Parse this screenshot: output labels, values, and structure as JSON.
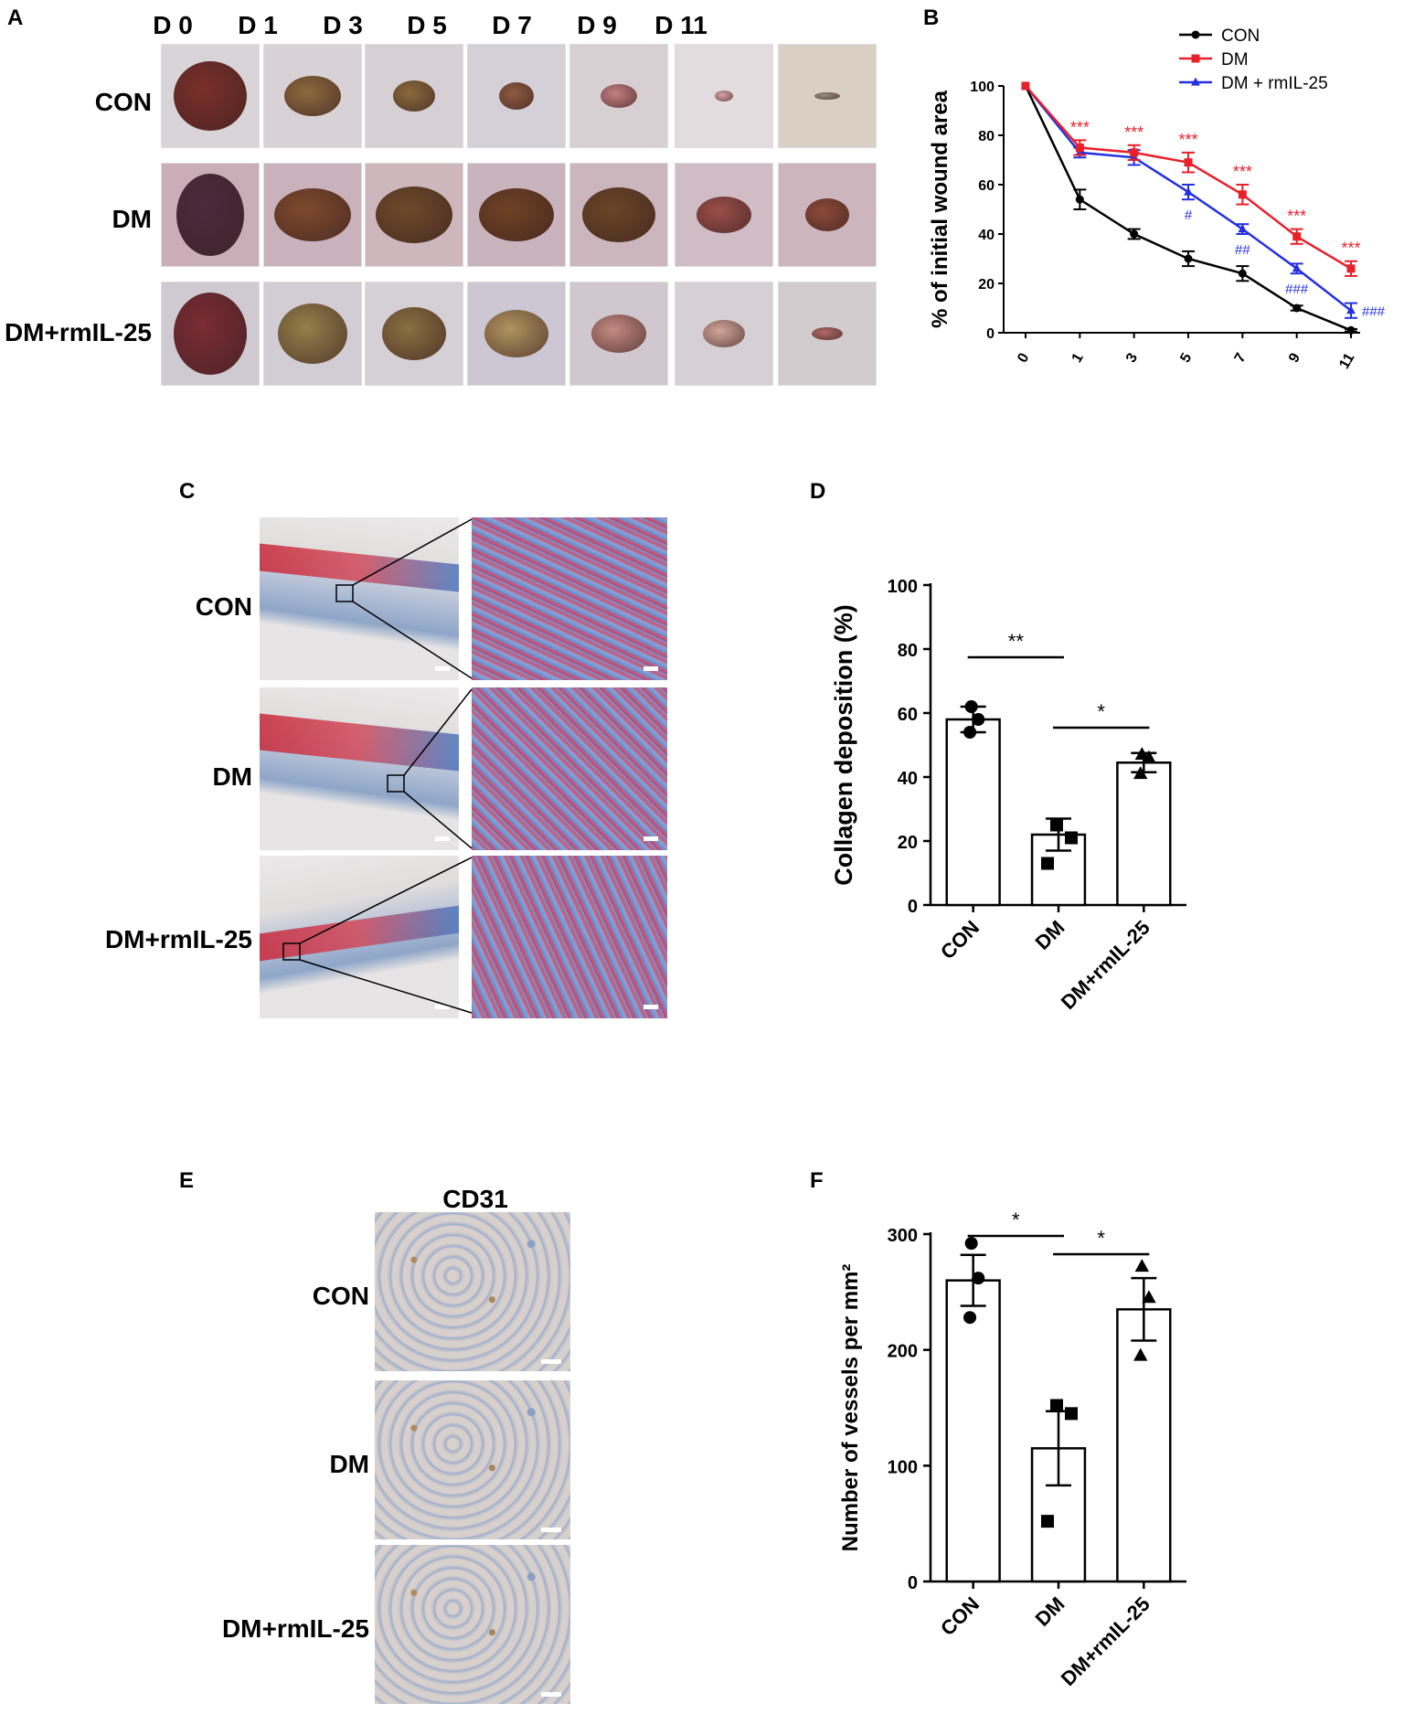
{
  "panels": {
    "A": {
      "label": "A",
      "days": [
        "D 0",
        "D 1",
        "D 3",
        "D 5",
        "D 7",
        "D 9",
        "D 11"
      ],
      "groups": [
        "CON",
        "DM",
        "DM+rmIL-25"
      ]
    },
    "C": {
      "label": "C",
      "groups": [
        "CON",
        "DM",
        "DM+rmIL-25"
      ]
    },
    "E": {
      "label": "E",
      "title": "CD31",
      "groups": [
        "CON",
        "DM",
        "DM+rmIL-25"
      ]
    },
    "B": {
      "label": "B"
    },
    "D": {
      "label": "D"
    },
    "F": {
      "label": "F"
    }
  },
  "colors": {
    "CON": "#000000",
    "DM": "#e8202a",
    "DM + rmIL-25": "#2430e0"
  },
  "chart_data": [
    {
      "panel": "B",
      "type": "line",
      "x": [
        "0",
        "1",
        "3",
        "5",
        "7",
        "9",
        "11"
      ],
      "ylabel": "% of initial wound area",
      "xlabel": "",
      "ylim": [
        0,
        100
      ],
      "yticks": [
        "0",
        "20",
        "40",
        "60",
        "80",
        "100"
      ],
      "legend_position": "top-right",
      "series": [
        {
          "name": "CON",
          "values": [
            100,
            54,
            40,
            30,
            24,
            10,
            1
          ],
          "errors": [
            0,
            4,
            2,
            3,
            3,
            1,
            0.5
          ],
          "marker": "circle"
        },
        {
          "name": "DM",
          "values": [
            100,
            75,
            73,
            69,
            56,
            39,
            26
          ],
          "errors": [
            0,
            3,
            3,
            4,
            4,
            3,
            3
          ],
          "marker": "square"
        },
        {
          "name": "DM + rmIL-25",
          "values": [
            100,
            73,
            71,
            57,
            42,
            26,
            9
          ],
          "errors": [
            0,
            2,
            3,
            3,
            2,
            2,
            3
          ],
          "marker": "triangle"
        }
      ],
      "annotations": {
        "DM": [
          "",
          "***",
          "***",
          "***",
          "***",
          "***",
          "***"
        ],
        "DM + rmIL-25": [
          "",
          "",
          "",
          "#",
          "##",
          "###",
          "###"
        ]
      }
    },
    {
      "panel": "D",
      "type": "bar",
      "categories": [
        "CON",
        "DM",
        "DM+rmIL-25"
      ],
      "values": [
        58,
        22,
        44.5
      ],
      "errors": [
        4,
        5,
        3
      ],
      "points": [
        [
          62,
          58,
          54
        ],
        [
          25,
          21,
          13
        ],
        [
          47,
          46,
          41
        ]
      ],
      "markers": [
        "circle",
        "square",
        "triangle"
      ],
      "ylabel": "Collagen deposition (%)",
      "ylim": [
        0,
        100
      ],
      "yticks": [
        "0",
        "20",
        "40",
        "60",
        "80",
        "100"
      ],
      "significance": [
        {
          "from": 0,
          "to": 1,
          "label": "**"
        },
        {
          "from": 1,
          "to": 2,
          "label": "*"
        }
      ]
    },
    {
      "panel": "F",
      "type": "bar",
      "categories": [
        "CON",
        "DM",
        "DM+rmIL-25"
      ],
      "values": [
        260,
        115,
        235
      ],
      "errors": [
        22,
        32,
        27
      ],
      "points": [
        [
          292,
          262,
          228
        ],
        [
          152,
          145,
          52
        ],
        [
          272,
          245,
          195
        ]
      ],
      "markers": [
        "circle",
        "square",
        "triangle"
      ],
      "ylabel": "Number of vessels per mm²",
      "ylim": [
        0,
        300
      ],
      "yticks": [
        "0",
        "100",
        "200",
        "300"
      ],
      "significance": [
        {
          "from": 0,
          "to": 1,
          "label": "*"
        },
        {
          "from": 1,
          "to": 2,
          "label": "*"
        }
      ]
    }
  ]
}
